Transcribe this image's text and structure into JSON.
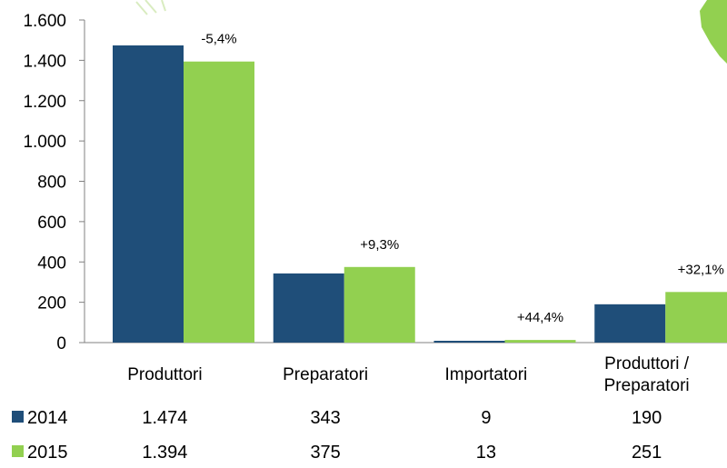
{
  "chart_data": {
    "type": "bar",
    "categories": [
      "Produttori",
      "Preparatori",
      "Importatori",
      "Produttori / Preparatori"
    ],
    "category_lines": [
      [
        "Produttori"
      ],
      [
        "Preparatori"
      ],
      [
        "Importatori"
      ],
      [
        "Produttori /",
        "Preparatori"
      ]
    ],
    "series": [
      {
        "name": "2014",
        "values": [
          1474,
          343,
          9,
          190
        ],
        "value_labels": [
          "1.474",
          "343",
          "9",
          "190"
        ],
        "color": "#1F4E79"
      },
      {
        "name": "2015",
        "values": [
          1394,
          375,
          13,
          251
        ],
        "value_labels": [
          "1.394",
          "375",
          "13",
          "251"
        ],
        "color": "#92D050"
      }
    ],
    "change_labels": [
      "-5,4%",
      "+9,3%",
      "+44,4%",
      "+32,1%"
    ],
    "yticks": [
      {
        "value": 0,
        "label": "0"
      },
      {
        "value": 200,
        "label": "200"
      },
      {
        "value": 400,
        "label": "400"
      },
      {
        "value": 600,
        "label": "600"
      },
      {
        "value": 800,
        "label": "800"
      },
      {
        "value": 1000,
        "label": "1.000"
      },
      {
        "value": 1200,
        "label": "1.200"
      },
      {
        "value": 1400,
        "label": "1.400"
      },
      {
        "value": 1600,
        "label": "1.600"
      }
    ],
    "ylim": [
      0,
      1600
    ],
    "grid": false,
    "legend": "data-table"
  }
}
